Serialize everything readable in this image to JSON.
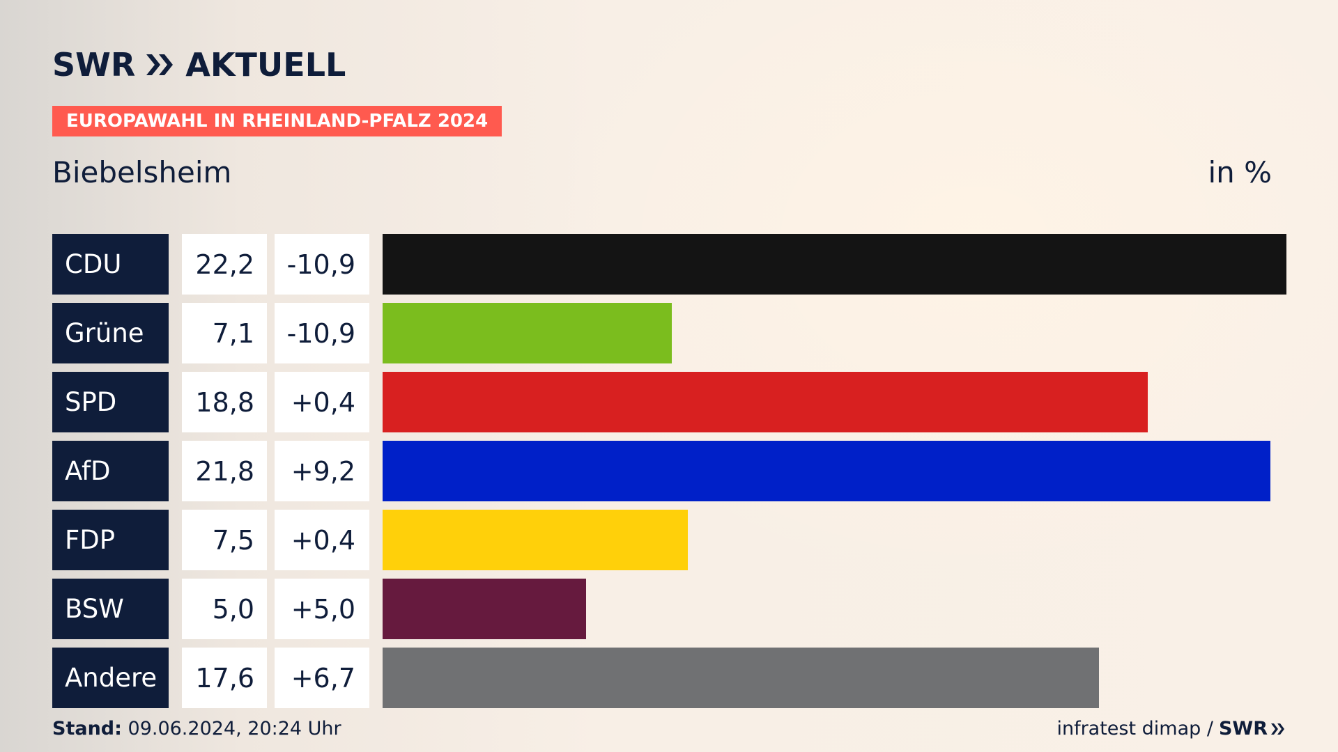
{
  "header": {
    "logo_brand": "SWR",
    "logo_title": "AKTUELL",
    "tag": "EUROPAWAHL IN RHEINLAND-PFALZ 2024",
    "location": "Biebelsheim",
    "unit": "in %"
  },
  "chart_data": {
    "type": "bar",
    "title": "Biebelsheim",
    "categories": [
      "CDU",
      "Grüne",
      "SPD",
      "AfD",
      "FDP",
      "BSW",
      "Andere"
    ],
    "series": [
      {
        "name": "",
        "values": [
          22.2,
          7.1,
          18.8,
          21.8,
          7.5,
          5.0,
          17.6
        ]
      }
    ],
    "value_labels": [
      "22,2",
      "7,1",
      "18,8",
      "21,8",
      "7,5",
      "5,0",
      "17,6"
    ],
    "diff_labels": [
      "-10,9",
      "-10,9",
      "+0,4",
      "+9,2",
      "+0,4",
      "+5,0",
      "+6,7"
    ],
    "colors": [
      "#141414",
      "#7bbd1e",
      "#d82020",
      "#0020c8",
      "#ffd00a",
      "#661a3e",
      "#707173"
    ],
    "xlim": [
      0,
      22.2
    ],
    "grid": false,
    "legend": "none",
    "orientation": "horizontal"
  },
  "footer": {
    "stand_label": "Stand:",
    "stand_value": "09.06.2024, 20:24 Uhr",
    "source": "infratest dimap /",
    "source_brand": "SWR"
  },
  "colors": {
    "navy": "#0f1d3a",
    "accent": "#ff5a4f"
  }
}
